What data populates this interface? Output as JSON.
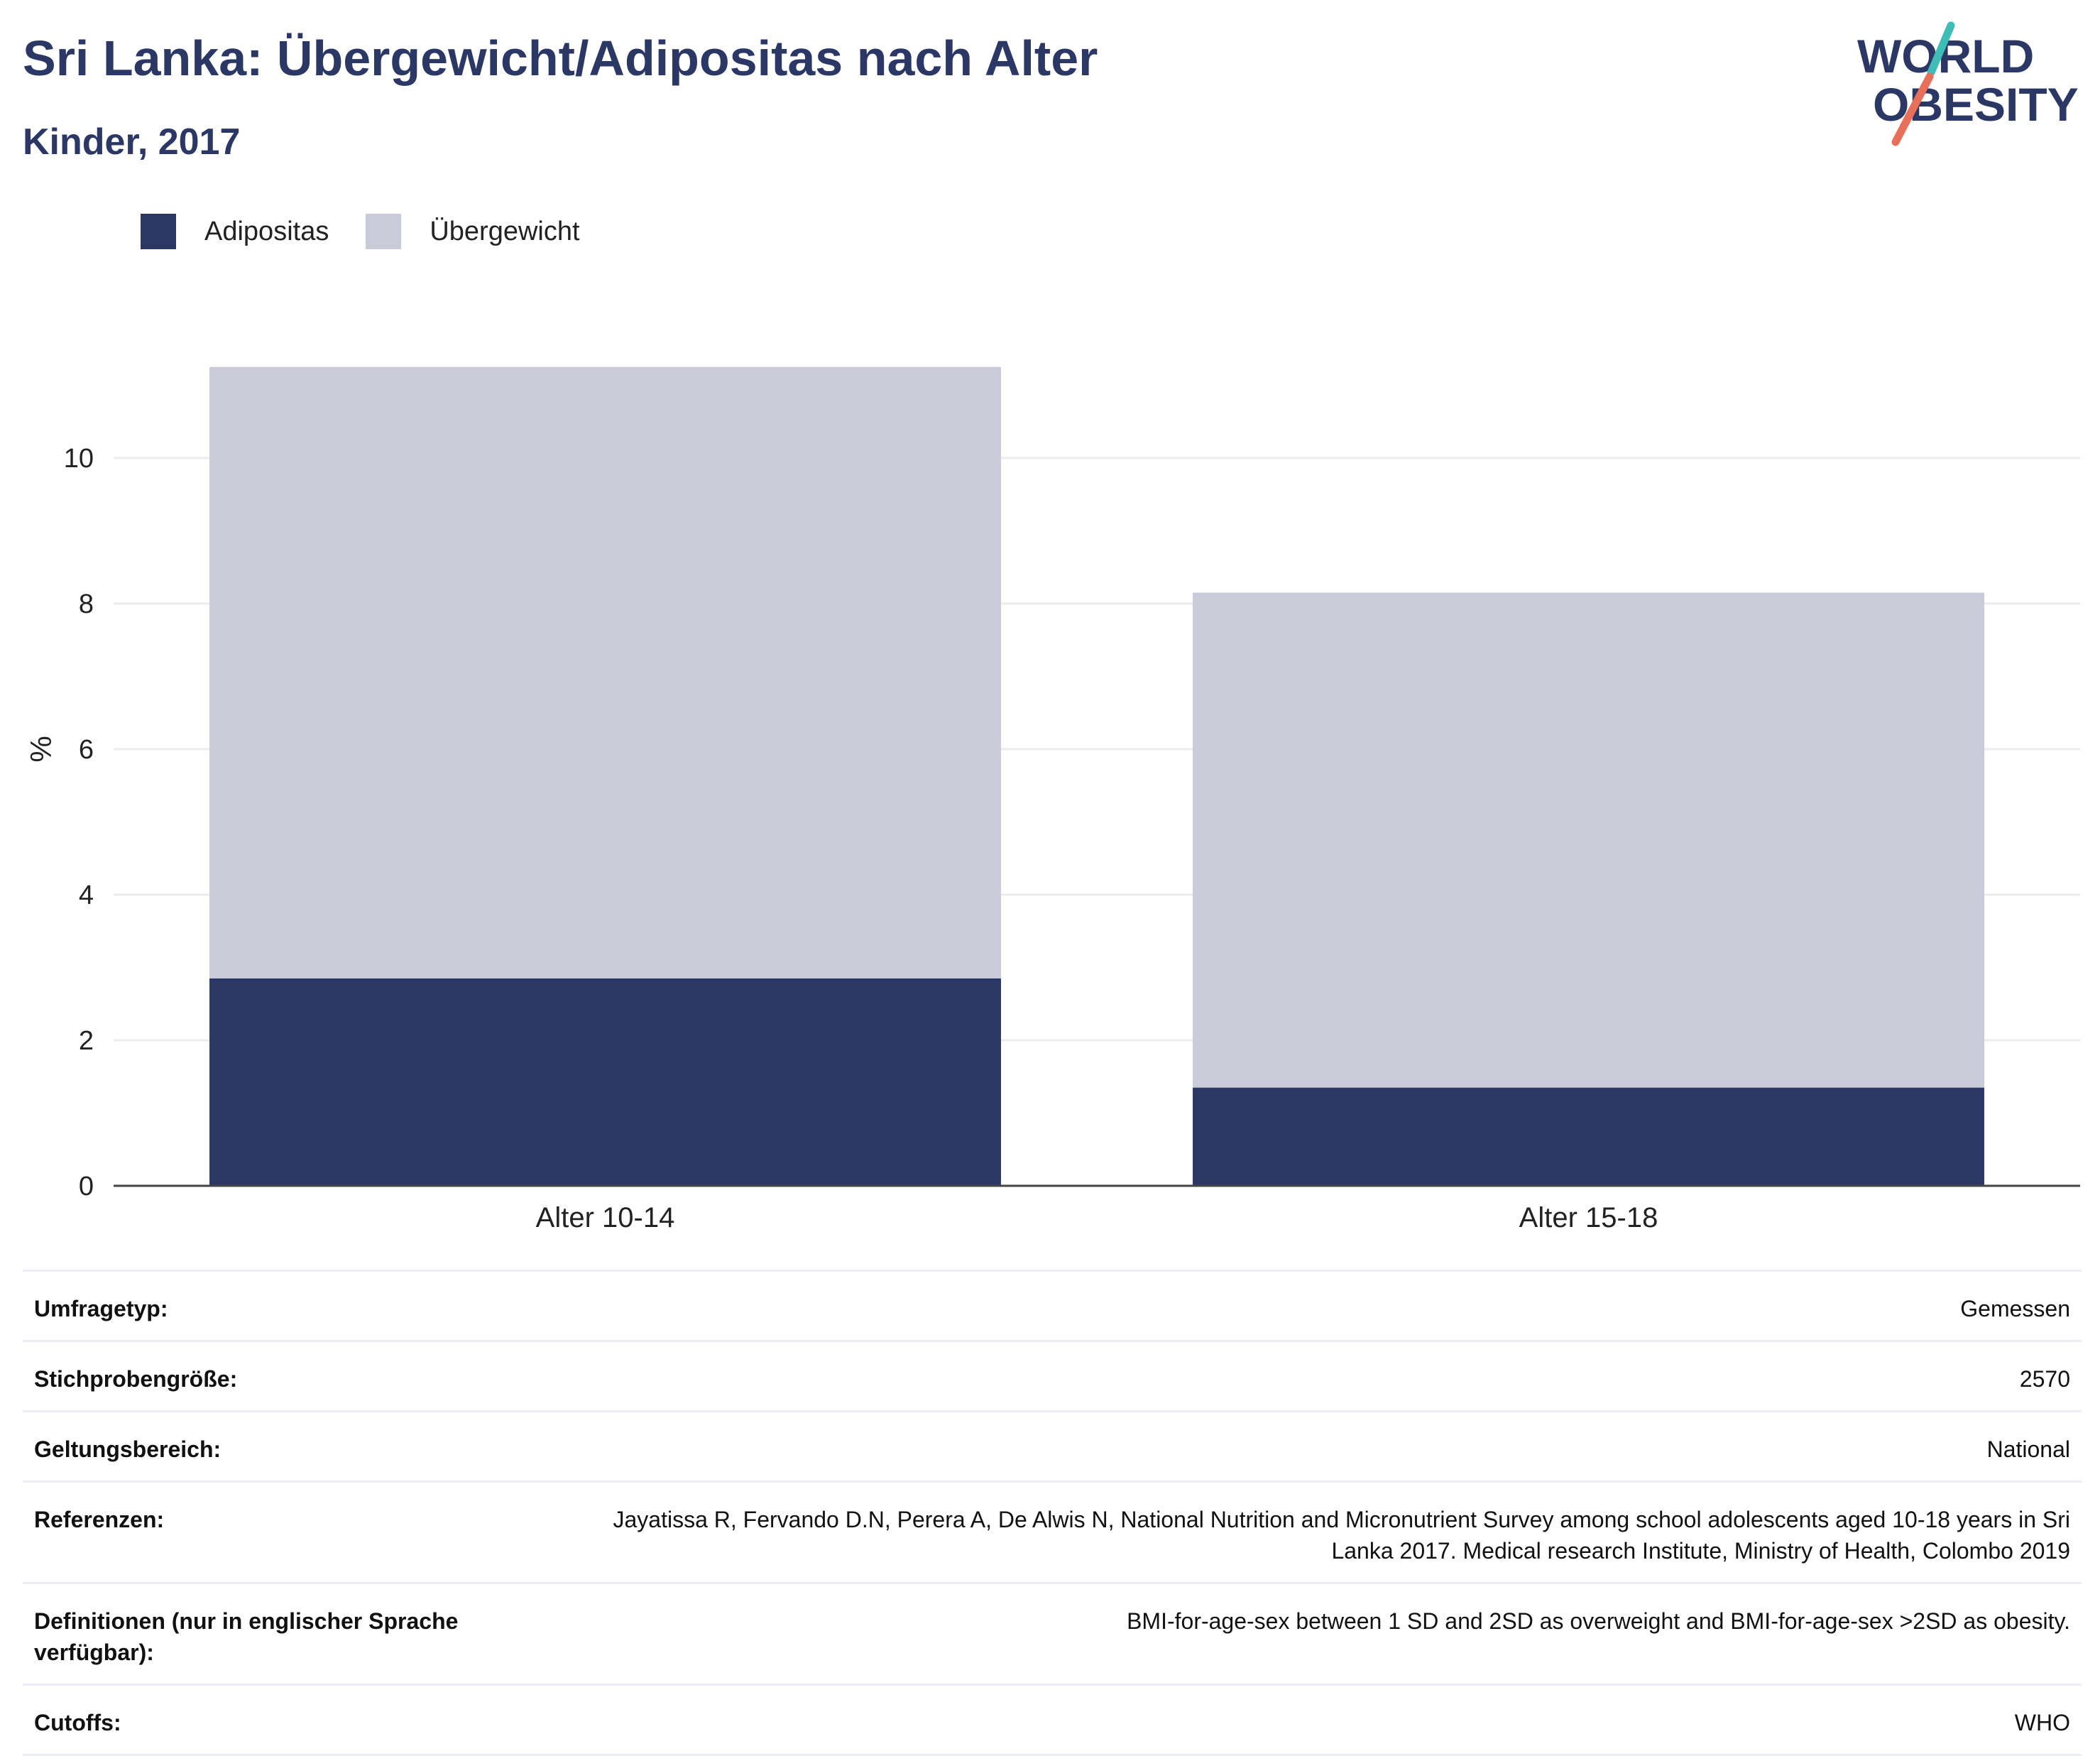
{
  "header": {
    "title": "Sri Lanka: Übergewicht/Adipositas nach Alter",
    "subtitle": "Kinder, 2017"
  },
  "logo": {
    "line1": "WORLD",
    "line2": "OBESITY",
    "colors": {
      "text": "#2b3764",
      "slash_top": "#3dbdb6",
      "slash_bottom": "#e8705a"
    }
  },
  "legend": [
    {
      "label": "Adipositas",
      "color": "#2b3764"
    },
    {
      "label": "Übergewicht",
      "color": "#c9ccd8"
    }
  ],
  "chart_data": {
    "type": "bar",
    "stacked": true,
    "categories": [
      "Alter 10-14",
      "Alter 15-18"
    ],
    "series": [
      {
        "name": "Adipositas",
        "values": [
          2.85,
          1.35
        ],
        "color": "#2b3764"
      },
      {
        "name": "Übergewicht",
        "values": [
          8.4,
          6.8
        ],
        "color": "#c9ccd8"
      }
    ],
    "ylabel": "%",
    "ylim": [
      0,
      12.0
    ],
    "yticks": [
      0,
      2,
      4,
      6,
      8,
      10
    ],
    "grid": true,
    "legend_position": "top-left"
  },
  "info": [
    {
      "label": "Umfragetyp:",
      "value": "Gemessen"
    },
    {
      "label": "Stichprobengröße:",
      "value": "2570"
    },
    {
      "label": "Geltungsbereich:",
      "value": "National"
    },
    {
      "label": "Referenzen:",
      "value": "Jayatissa R, Fervando D.N, Perera A, De Alwis N, National Nutrition and Micronutrient Survey among school adolescents aged 10-18 years in Sri Lanka 2017. Medical research Institute, Ministry of Health, Colombo 2019"
    },
    {
      "label": "Definitionen (nur in englischer Sprache verfügbar):",
      "value": "BMI-for-age-sex between 1 SD and 2SD as overweight and BMI-for-age-sex >2SD as obesity."
    },
    {
      "label": "Cutoffs:",
      "value": "WHO"
    }
  ]
}
